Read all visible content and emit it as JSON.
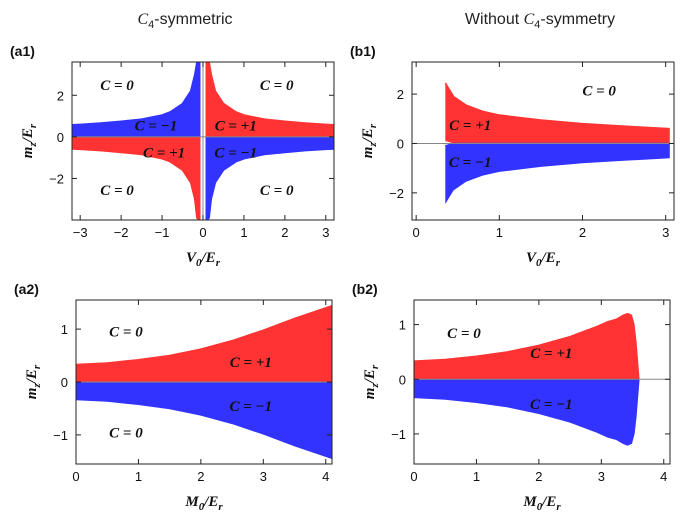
{
  "figure": {
    "col_headers": [
      {
        "symbol": "C",
        "sub": "4",
        "suffix": "-symmetric"
      },
      {
        "prefix": "Without ",
        "symbol": "C",
        "sub": "4",
        "suffix": "-symmetry"
      }
    ]
  },
  "chart_data": [
    {
      "id": "a1",
      "panel_label": "(a1)",
      "type": "area",
      "xlabel": "V0/Er",
      "ylabel": "mz/Er",
      "xlim": [
        -3.2,
        3.2
      ],
      "ylim": [
        -4,
        3.6
      ],
      "xticks": [
        -3,
        -2,
        -1,
        0,
        1,
        2,
        3
      ],
      "yticks": [
        -2,
        0,
        2
      ],
      "series": [
        {
          "name": "C = +1",
          "color": "#ff3333",
          "x": [
            0.06,
            0.1,
            0.15,
            0.2,
            0.3,
            0.5,
            0.8,
            1,
            1.5,
            2,
            2.5,
            3,
            3.2
          ],
          "upper": [
            3.6,
            3.6,
            3.6,
            3.0,
            2.2,
            1.6,
            1.2,
            1.05,
            0.85,
            0.75,
            0.66,
            0.6,
            0.58
          ],
          "lower": [
            0,
            0,
            0,
            0,
            0,
            0,
            0,
            0,
            0,
            0,
            0,
            0,
            0
          ]
        },
        {
          "name": "C = -1",
          "color": "#3333ff",
          "x": [
            0.06,
            0.1,
            0.15,
            0.2,
            0.3,
            0.5,
            0.8,
            1,
            1.5,
            2,
            2.5,
            3,
            3.2
          ],
          "upper": [
            0,
            0,
            0,
            0,
            0,
            0,
            0,
            0,
            0,
            0,
            0,
            0,
            0
          ],
          "lower": [
            -4,
            -4,
            -3.9,
            -3.0,
            -2.2,
            -1.6,
            -1.2,
            -1.05,
            -0.85,
            -0.75,
            -0.66,
            -0.6,
            -0.58
          ]
        },
        {
          "name": "C = -1",
          "color": "#3333ff",
          "x": [
            -3.2,
            -3,
            -2.5,
            -2,
            -1.5,
            -1,
            -0.8,
            -0.5,
            -0.3,
            -0.2,
            -0.15,
            -0.1,
            -0.06
          ],
          "upper": [
            0.58,
            0.6,
            0.66,
            0.75,
            0.85,
            1.05,
            1.2,
            1.6,
            2.2,
            3.0,
            3.6,
            3.6,
            3.6
          ],
          "lower": [
            0,
            0,
            0,
            0,
            0,
            0,
            0,
            0,
            0,
            0,
            0,
            0,
            0
          ]
        },
        {
          "name": "C = +1",
          "color": "#ff3333",
          "x": [
            -3.2,
            -3,
            -2.5,
            -2,
            -1.5,
            -1,
            -0.8,
            -0.5,
            -0.3,
            -0.2,
            -0.15,
            -0.1,
            -0.06
          ],
          "upper": [
            0,
            0,
            0,
            0,
            0,
            0,
            0,
            0,
            0,
            0,
            0,
            0,
            0
          ],
          "lower": [
            -0.58,
            -0.6,
            -0.66,
            -0.75,
            -0.85,
            -1.05,
            -1.2,
            -1.6,
            -2.2,
            -3.0,
            -3.9,
            -4,
            -4
          ]
        }
      ],
      "annotations": [
        {
          "text": "C = 0",
          "x": -2.1,
          "y": 2.5
        },
        {
          "text": "C = 0",
          "x": 1.8,
          "y": 2.5
        },
        {
          "text": "C = −1",
          "x": -1.15,
          "y": 0.55
        },
        {
          "text": "C = +1",
          "x": 0.8,
          "y": 0.55
        },
        {
          "text": "C = +1",
          "x": -0.95,
          "y": -0.75
        },
        {
          "text": "C = −1",
          "x": 0.8,
          "y": -0.75
        },
        {
          "text": "C = 0",
          "x": -2.1,
          "y": -2.55
        },
        {
          "text": "C = 0",
          "x": 1.8,
          "y": -2.55
        }
      ]
    },
    {
      "id": "b1",
      "panel_label": "(b1)",
      "type": "area",
      "xlabel": "V0/Er",
      "ylabel": "mz/Er",
      "xlim": [
        -0.05,
        3.1
      ],
      "ylim": [
        -3.1,
        3.3
      ],
      "xticks": [
        0,
        1,
        2,
        3
      ],
      "yticks": [
        -2,
        0,
        2
      ],
      "series": [
        {
          "name": "C = +1",
          "color": "#ff3333",
          "x": [
            0.35,
            0.45,
            0.6,
            0.8,
            1.0,
            1.5,
            2.0,
            2.5,
            3.05
          ],
          "upper": [
            2.45,
            1.9,
            1.55,
            1.3,
            1.15,
            0.95,
            0.8,
            0.7,
            0.6
          ],
          "lower": [
            0.1,
            0,
            0,
            0,
            0,
            0,
            0,
            0,
            0
          ]
        },
        {
          "name": "C = -1",
          "color": "#3333ff",
          "x": [
            0.35,
            0.45,
            0.6,
            0.8,
            1.0,
            1.5,
            2.0,
            2.5,
            3.05
          ],
          "upper": [
            -0.1,
            0,
            0,
            0,
            0,
            0,
            0,
            0,
            0
          ],
          "lower": [
            -2.45,
            -1.9,
            -1.55,
            -1.3,
            -1.15,
            -0.95,
            -0.8,
            -0.7,
            -0.6
          ]
        }
      ],
      "annotations": [
        {
          "text": "C = 0",
          "x": 2.2,
          "y": 2.15
        },
        {
          "text": "C = +1",
          "x": 0.65,
          "y": 0.75
        },
        {
          "text": "C = −1",
          "x": 0.65,
          "y": -0.75
        }
      ]
    },
    {
      "id": "a2",
      "panel_label": "(a2)",
      "type": "area",
      "xlabel": "M0/Er",
      "ylabel": "mz/Er",
      "xlim": [
        0,
        4.1
      ],
      "ylim": [
        -1.55,
        1.55
      ],
      "xticks": [
        0,
        1,
        2,
        3,
        4
      ],
      "yticks": [
        -1,
        0,
        1
      ],
      "series": [
        {
          "name": "C = +1",
          "color": "#ff3333",
          "x": [
            0,
            0.5,
            1,
            1.5,
            2,
            2.5,
            3,
            3.5,
            4,
            4.1
          ],
          "upper": [
            0.33,
            0.36,
            0.42,
            0.5,
            0.62,
            0.78,
            0.98,
            1.2,
            1.4,
            1.44
          ],
          "lower": [
            0,
            0,
            0,
            0,
            0,
            0,
            0,
            0,
            0,
            0
          ]
        },
        {
          "name": "C = -1",
          "color": "#3333ff",
          "x": [
            0,
            0.5,
            1,
            1.5,
            2,
            2.5,
            3,
            3.5,
            4,
            4.1
          ],
          "upper": [
            0,
            0,
            0,
            0,
            0,
            0,
            0,
            0,
            0,
            0
          ],
          "lower": [
            -0.33,
            -0.36,
            -0.42,
            -0.5,
            -0.62,
            -0.78,
            -0.98,
            -1.2,
            -1.4,
            -1.44
          ]
        }
      ],
      "annotations": [
        {
          "text": "C = 0",
          "x": 0.8,
          "y": 0.95
        },
        {
          "text": "C = +1",
          "x": 2.8,
          "y": 0.38
        },
        {
          "text": "C = −1",
          "x": 2.8,
          "y": -0.45
        },
        {
          "text": "C = 0",
          "x": 0.8,
          "y": -0.95
        }
      ]
    },
    {
      "id": "b2",
      "panel_label": "(b2)",
      "type": "area",
      "xlabel": "M0/Er",
      "ylabel": "mz/Er",
      "xlim": [
        0,
        4.1
      ],
      "ylim": [
        -1.55,
        1.45
      ],
      "xticks": [
        0,
        1,
        2,
        3,
        4
      ],
      "yticks": [
        -1,
        0,
        1
      ],
      "series": [
        {
          "name": "C = +1",
          "color": "#ff3333",
          "x": [
            0,
            0.5,
            1,
            1.5,
            2,
            2.5,
            2.9,
            3.1,
            3.25,
            3.35,
            3.42,
            3.48,
            3.52,
            3.55,
            3.58,
            3.6
          ],
          "upper": [
            0.33,
            0.36,
            0.42,
            0.5,
            0.62,
            0.78,
            0.95,
            1.05,
            1.1,
            1.17,
            1.2,
            1.17,
            1.0,
            0.7,
            0.3,
            0
          ],
          "lower": [
            0,
            0,
            0,
            0,
            0,
            0,
            0,
            0,
            0,
            0,
            0,
            0,
            0,
            0,
            0,
            0
          ]
        },
        {
          "name": "C = -1",
          "color": "#3333ff",
          "x": [
            0,
            0.5,
            1,
            1.5,
            2,
            2.5,
            2.9,
            3.1,
            3.25,
            3.35,
            3.42,
            3.48,
            3.52,
            3.55,
            3.58,
            3.6
          ],
          "upper": [
            0,
            0,
            0,
            0,
            0,
            0,
            0,
            0,
            0,
            0,
            0,
            0,
            0,
            0,
            0,
            0
          ],
          "lower": [
            -0.33,
            -0.36,
            -0.42,
            -0.5,
            -0.62,
            -0.78,
            -0.95,
            -1.05,
            -1.1,
            -1.17,
            -1.2,
            -1.17,
            -1.0,
            -0.7,
            -0.3,
            0
          ]
        }
      ],
      "annotations": [
        {
          "text": "C = 0",
          "x": 0.8,
          "y": 0.85
        },
        {
          "text": "C = +1",
          "x": 2.2,
          "y": 0.48
        },
        {
          "text": "C = −1",
          "x": 2.2,
          "y": -0.45
        }
      ]
    }
  ]
}
